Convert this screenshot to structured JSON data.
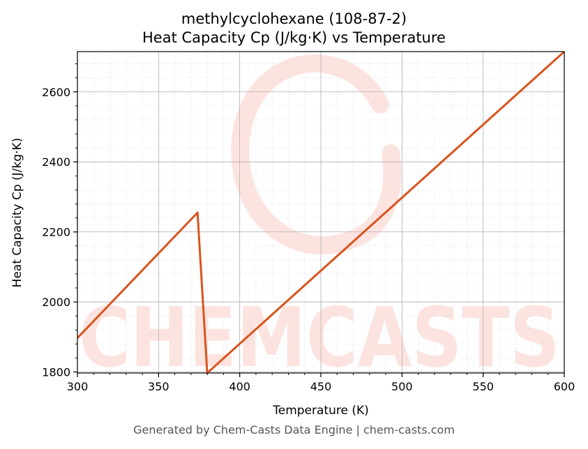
{
  "chart_data": {
    "type": "line",
    "title_line1": "methylcyclohexane (108-87-2)",
    "title_line2": "Heat Capacity Cp (J/kg·K) vs Temperature",
    "xlabel": "Temperature (K)",
    "ylabel": "Heat Capacity Cp (J/kg·K)",
    "xlim": [
      300,
      600
    ],
    "ylim": [
      1797,
      2715
    ],
    "xticks": [
      "300",
      "350",
      "400",
      "450",
      "500",
      "550",
      "600"
    ],
    "yticks": [
      "1800",
      "2000",
      "2200",
      "2400",
      "2600"
    ],
    "grid": true,
    "series": [
      {
        "color": "#d9541e",
        "x": [
          300,
          374,
          380,
          600
        ],
        "y": [
          1897,
          2255,
          1797,
          2715
        ]
      }
    ],
    "watermark": "CHEMCASTS"
  },
  "footer": "Generated by Chem-Casts Data Engine | chem-casts.com",
  "colors": {
    "line": "#d9541e",
    "watermark": "#fde3df",
    "grid_major": "#b0b0b0",
    "grid_minor": "#e6e6e6"
  }
}
